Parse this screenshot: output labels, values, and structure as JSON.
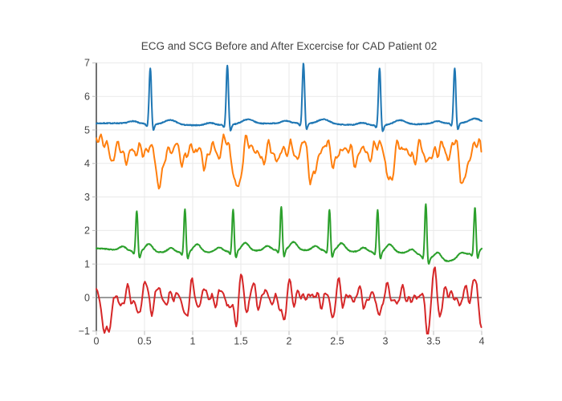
{
  "title": "ECG and SCG Before and After Excercise for CAD Patient 02",
  "colors": {
    "trace_blue": "#1f77b4",
    "trace_orange": "#ff7f0e",
    "trace_green": "#2ca02c",
    "trace_red": "#d62728",
    "grid": "#e9e9e9",
    "zero_line": "#7a7a7a",
    "axis_line": "#444444",
    "text": "#444444",
    "background": "#ffffff"
  },
  "chart_data": {
    "type": "line",
    "title": "ECG and SCG Before and After Excercise for CAD Patient 02",
    "xlabel": "",
    "ylabel": "",
    "xlim": [
      0,
      4
    ],
    "ylim": [
      -1,
      7
    ],
    "grid": true,
    "legend": "none",
    "xticks": [
      0,
      0.5,
      1,
      1.5,
      2,
      2.5,
      3,
      3.5,
      4
    ],
    "xtick_labels": [
      "0",
      "0.5",
      "1",
      "1.5",
      "2",
      "2.5",
      "3",
      "3.5",
      "4"
    ],
    "yticks": [
      -1,
      0,
      1,
      2,
      3,
      4,
      5,
      6,
      7
    ],
    "ytick_labels": [
      "−1",
      "0",
      "1",
      "2",
      "3",
      "4",
      "5",
      "6",
      "7"
    ],
    "series": [
      {
        "id": "ecg-trace-top",
        "color": "#1f77b4",
        "kind": "ecg",
        "dt": 0.004,
        "baseline": 5.17,
        "beats": [
          0.56,
          1.36,
          2.15,
          2.94,
          3.72
        ],
        "r_amps": [
          1.7,
          1.8,
          1.83,
          1.73,
          1.68
        ],
        "r_peak_values": [
          6.87,
          6.97,
          7.0,
          6.9,
          6.85
        ],
        "template": {
          "p": {
            "c": -0.18,
            "w": 0.045,
            "a": 0.07
          },
          "q": {
            "c": -0.03,
            "w": 0.012,
            "a": -0.1
          },
          "r": {
            "c": 0,
            "w": 0.012
          },
          "s": {
            "c": 0.027,
            "w": 0.013,
            "a": -0.24
          },
          "t": {
            "c": 0.21,
            "w": 0.06,
            "a": 0.14
          }
        },
        "wander": [
          {
            "a": 0.03,
            "f": 0.55,
            "ph": 1.0
          }
        ],
        "dips": [],
        "noise": {
          "seed": 7,
          "amp": 0.012
        }
      },
      {
        "id": "scg-trace-upper",
        "color": "#ff7f0e",
        "kind": "scg",
        "dt": 0.012,
        "baseline": 4.3,
        "approx_range": [
          3.2,
          4.9
        ],
        "sines": [
          {
            "a": 0.18,
            "f": 5.1,
            "ph": 0.5
          },
          {
            "a": 0.14,
            "f": 8.3,
            "ph": 2.1
          },
          {
            "a": 0.1,
            "f": 12.7,
            "ph": 4.0
          },
          {
            "a": 0.06,
            "f": 3.1,
            "ph": 1.2
          },
          {
            "a": 0.09,
            "f": 17.3,
            "ph": 2.6
          }
        ],
        "beats": [
          0.56,
          1.36,
          2.15,
          2.94,
          3.72
        ],
        "beat_amps": [
          1.0,
          1.0,
          0.8,
          0.7,
          0.85
        ],
        "burst": [
          {
            "c": -0.01,
            "w": 0.035,
            "a": 0.55
          },
          {
            "c": 0.09,
            "w": 0.045,
            "a": -1.05
          },
          {
            "c": 0.17,
            "w": 0.04,
            "a": 0.35
          }
        ],
        "extras": [
          {
            "t": 0.06,
            "a": 0.35,
            "w": 0.06
          }
        ],
        "noise": {
          "seed": 13,
          "amp": 0.04
        }
      },
      {
        "id": "ecg-trace-lower",
        "color": "#2ca02c",
        "kind": "ecg",
        "dt": 0.004,
        "baseline": 1.38,
        "beats": [
          0.42,
          0.92,
          1.42,
          1.92,
          2.42,
          2.92,
          3.42,
          3.93
        ],
        "r_amps": [
          1.25,
          1.32,
          1.28,
          1.33,
          1.27,
          1.3,
          1.62,
          1.38
        ],
        "r_peak_values": [
          2.63,
          2.7,
          2.66,
          2.71,
          2.65,
          2.68,
          3.0,
          2.76
        ],
        "template": {
          "p": {
            "c": -0.145,
            "w": 0.035,
            "a": 0.13
          },
          "q": {
            "c": -0.027,
            "w": 0.011,
            "a": -0.1
          },
          "r": {
            "c": 0,
            "w": 0.011
          },
          "s": {
            "c": 0.024,
            "w": 0.012,
            "a": -0.26
          },
          "t": {
            "c": 0.125,
            "w": 0.038,
            "a": 0.24
          }
        },
        "wander": [
          {
            "a": 0.035,
            "f": 0.45,
            "ph": 2.2
          }
        ],
        "dips": [
          {
            "t": 3.62,
            "a": -0.3,
            "w": 0.17
          },
          {
            "t": 0.0,
            "a": 0.06,
            "w": 0.15
          }
        ],
        "noise": {
          "seed": 3,
          "amp": 0.012
        }
      },
      {
        "id": "scg-trace-lower",
        "color": "#d62728",
        "kind": "scg",
        "dt": 0.012,
        "baseline": 0,
        "approx_range": [
          -0.95,
          1.05
        ],
        "sines": [
          {
            "a": 0.15,
            "f": 6.3,
            "ph": 0.8
          },
          {
            "a": 0.12,
            "f": 9.1,
            "ph": 2.4
          },
          {
            "a": 0.09,
            "f": 13.7,
            "ph": 4.9
          },
          {
            "a": 0.06,
            "f": 18.2,
            "ph": 1.7
          }
        ],
        "beats": [
          0.45,
          0.95,
          1.45,
          1.95,
          2.45,
          2.95,
          3.45
        ],
        "beat_amps": [
          0.5,
          0.6,
          1.0,
          0.95,
          0.55,
          0.5,
          0.9
        ],
        "burst": [
          {
            "c": 0.0,
            "w": 0.03,
            "a": -0.95
          },
          {
            "c": 0.055,
            "w": 0.025,
            "a": 1.05
          },
          {
            "c": 0.11,
            "w": 0.03,
            "a": -0.55
          },
          {
            "c": 0.16,
            "w": 0.03,
            "a": 0.3
          }
        ],
        "extras": [
          {
            "t": 0.02,
            "a": 0.3,
            "w": 0.03
          },
          {
            "t": 0.1,
            "a": -1.0,
            "w": 0.05
          },
          {
            "t": 3.93,
            "a": 0.8,
            "w": 0.025
          },
          {
            "t": 3.99,
            "a": -0.9,
            "w": 0.03
          }
        ],
        "noise": {
          "seed": 21,
          "amp": 0.04
        }
      }
    ]
  }
}
